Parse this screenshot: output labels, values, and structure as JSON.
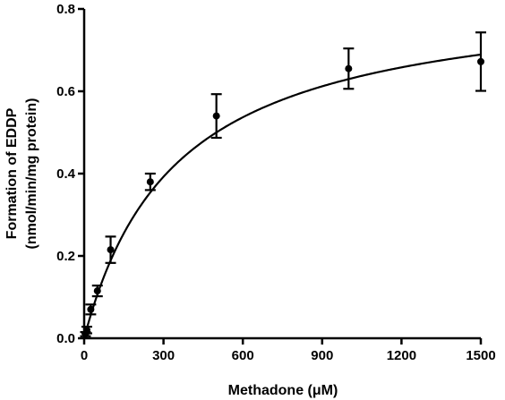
{
  "chart_data": {
    "type": "scatter",
    "xlabel": "Methadone (μM)",
    "ylabel_line1": "Formation of EDDP",
    "ylabel_line2": "(nmol/min/mg protein)",
    "xlim": [
      0,
      1500
    ],
    "ylim": [
      0,
      0.8
    ],
    "x_ticks": [
      0,
      300,
      600,
      900,
      1200,
      1500
    ],
    "y_ticks": [
      0.0,
      0.2,
      0.4,
      0.6,
      0.8
    ],
    "x_tick_labels": [
      "0",
      "300",
      "600",
      "900",
      "1200",
      "1500"
    ],
    "y_tick_labels": [
      "0.0",
      "0.2",
      "0.4",
      "0.6",
      "0.8"
    ],
    "grid": false,
    "series": [
      {
        "points": [
          {
            "x": 5,
            "y": 0.01,
            "err": 0.005
          },
          {
            "x": 10,
            "y": 0.02,
            "err": 0.008
          },
          {
            "x": 25,
            "y": 0.07,
            "err": 0.012
          },
          {
            "x": 50,
            "y": 0.115,
            "err": 0.013
          },
          {
            "x": 100,
            "y": 0.215,
            "err": 0.032
          },
          {
            "x": 250,
            "y": 0.38,
            "err": 0.02
          },
          {
            "x": 500,
            "y": 0.54,
            "err": 0.053
          },
          {
            "x": 1000,
            "y": 0.655,
            "err": 0.049
          },
          {
            "x": 1500,
            "y": 0.672,
            "err": 0.071
          }
        ]
      }
    ],
    "fit_curve": {
      "model": "michaelis-menten",
      "vmax": 0.85,
      "km": 350
    }
  }
}
